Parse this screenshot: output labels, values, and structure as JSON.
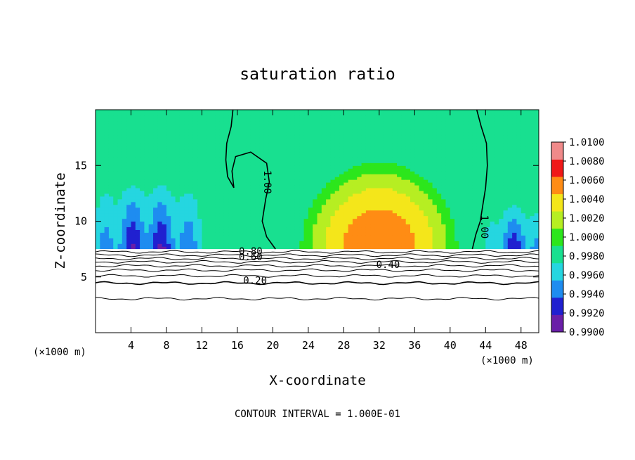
{
  "chart_data": {
    "type": "heatmap",
    "title": "saturation ratio",
    "xlabel": "X-coordinate",
    "ylabel": "Z-coordinate",
    "x_unit": "(×1000 m)",
    "x_unit_right": "(×1000 m)",
    "footnote": "CONTOUR INTERVAL = 1.000E-01",
    "xlim": [
      0,
      50
    ],
    "ylim": [
      0,
      20
    ],
    "x_ticks": [
      4,
      8,
      12,
      16,
      20,
      24,
      28,
      32,
      36,
      40,
      44,
      48
    ],
    "y_ticks": [
      5,
      10,
      15
    ],
    "grid": false,
    "colorbar": {
      "levels": [
        0.99,
        0.992,
        0.994,
        0.996,
        0.998,
        1.0,
        1.002,
        1.004,
        1.006,
        1.008,
        1.01
      ],
      "tick_labels": [
        "0.9900",
        "0.9920",
        "0.9940",
        "0.9960",
        "0.9980",
        "1.0000",
        "1.0020",
        "1.0040",
        "1.0060",
        "1.0080",
        "1.0100"
      ],
      "colors": [
        "#6a1fa8",
        "#2020d0",
        "#1e8cf0",
        "#25d6e0",
        "#18e090",
        "#2ce61c",
        "#b6ee22",
        "#f4e61a",
        "#ff8c14",
        "#f01818",
        "#f08a8a"
      ]
    },
    "cloud_base_z": 7.5,
    "contour_labels": [
      {
        "text": "1.00",
        "x": 19.0,
        "z": 13.5
      },
      {
        "text": "1.00",
        "x": 43.5,
        "z": 9.5
      },
      {
        "text": "0.80",
        "x": 17.5,
        "z": 7.0
      },
      {
        "text": "0.60",
        "x": 17.5,
        "z": 6.5
      },
      {
        "text": "0.40",
        "x": 33.0,
        "z": 5.8
      },
      {
        "text": "0.20",
        "x": 18.0,
        "z": 4.4
      }
    ],
    "contour_lines_below_cloud": [
      {
        "value": 0.9,
        "z": 7.25
      },
      {
        "value": 0.8,
        "z": 6.95
      },
      {
        "value": 0.7,
        "z": 6.65
      },
      {
        "value": 0.6,
        "z": 6.35
      },
      {
        "value": 0.5,
        "z": 6.0
      },
      {
        "value": 0.4,
        "z": 5.6
      },
      {
        "value": 0.3,
        "z": 5.1
      },
      {
        "value": 0.2,
        "z": 4.45
      },
      {
        "value": 0.1,
        "z": 3.05
      }
    ],
    "contour_1_00_west": [
      [
        15.5,
        20
      ],
      [
        15.3,
        18.5
      ],
      [
        14.8,
        17.0
      ],
      [
        14.7,
        15.5
      ],
      [
        14.9,
        14.0
      ],
      [
        15.6,
        13.0
      ],
      [
        15.4,
        14.5
      ],
      [
        15.8,
        15.8
      ],
      [
        17.5,
        16.2
      ],
      [
        19.3,
        15.2
      ],
      [
        19.6,
        13.5
      ],
      [
        19.2,
        12.0
      ],
      [
        18.8,
        10.0
      ],
      [
        19.3,
        8.6
      ],
      [
        20.3,
        7.5
      ]
    ],
    "contour_1_00_east": [
      [
        43.0,
        20
      ],
      [
        43.5,
        18.5
      ],
      [
        44.1,
        17.0
      ],
      [
        44.2,
        15.0
      ],
      [
        44.0,
        13.0
      ],
      [
        43.4,
        10.0
      ],
      [
        42.9,
        8.8
      ],
      [
        42.5,
        7.5
      ]
    ],
    "field_features": [
      {
        "kind": "subsaturated_trough",
        "x": [
          0,
          12
        ],
        "z_top": 14,
        "min_ratio": 0.991
      },
      {
        "kind": "subsaturated_trough",
        "x": [
          45,
          50
        ],
        "z_top": 12,
        "min_ratio": 0.992
      },
      {
        "kind": "supersaturated_dome",
        "x": [
          22,
          40
        ],
        "z_top": 15.5,
        "max_ratio": 1.0075
      },
      {
        "kind": "background",
        "ratio": 0.9995
      }
    ]
  }
}
